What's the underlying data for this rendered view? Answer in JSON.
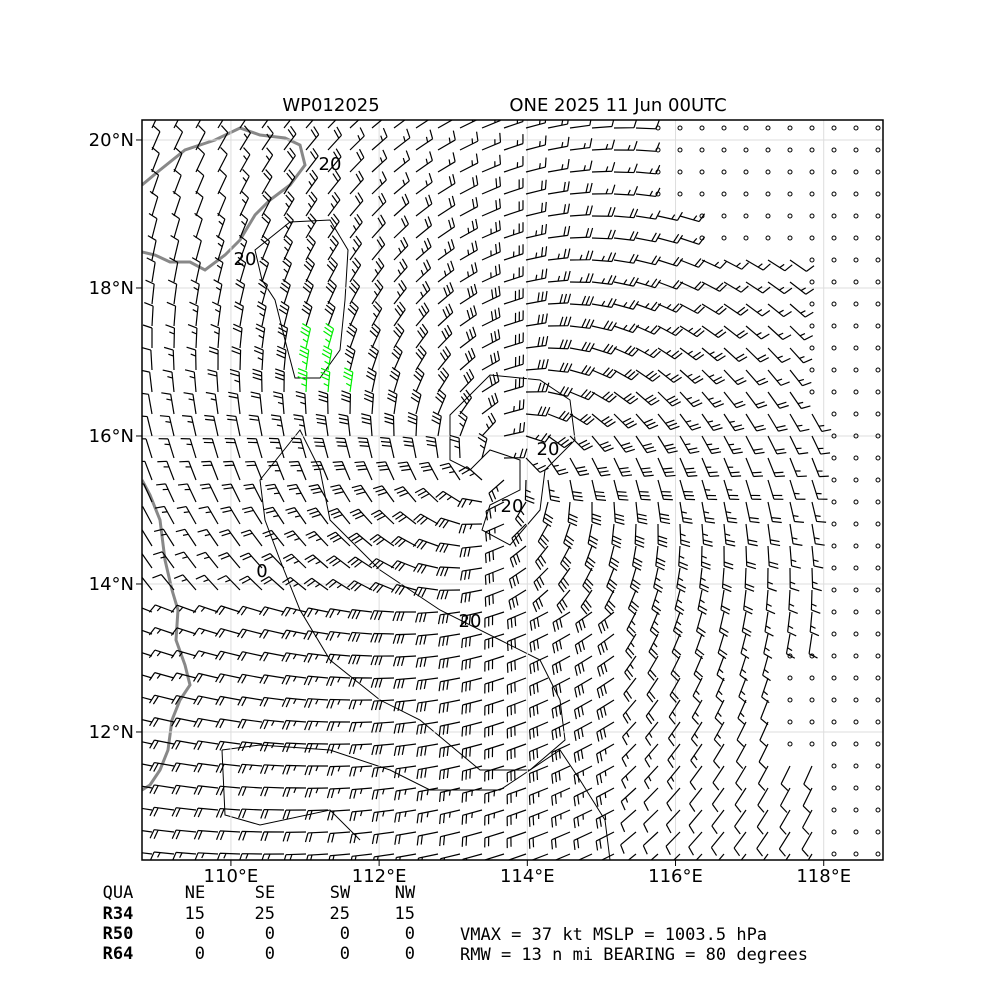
{
  "chart_data": {
    "type": "wind-map",
    "title_left": "WP012025",
    "title_right": "ONE 2025 11 Jun 00UTC",
    "xlim": [
      108.8,
      118.8
    ],
    "ylim": [
      10.27,
      20.27
    ],
    "xticks": [
      {
        "value": 110,
        "label": "110°E"
      },
      {
        "value": 112,
        "label": "112°E"
      },
      {
        "value": 114,
        "label": "114°E"
      },
      {
        "value": 116,
        "label": "116°E"
      },
      {
        "value": 118,
        "label": "118°E"
      }
    ],
    "yticks": [
      {
        "value": 12,
        "label": "12°N"
      },
      {
        "value": 14,
        "label": "14°N"
      },
      {
        "value": 16,
        "label": "16°N"
      },
      {
        "value": 18,
        "label": "18°N"
      },
      {
        "value": 20,
        "label": "20°N"
      }
    ],
    "grid": true,
    "contour_labels": [
      "20",
      "20",
      "20",
      "20",
      "0",
      "20"
    ]
  },
  "table": {
    "header": [
      "QUA",
      "NE",
      "SE",
      "SW",
      "NW"
    ],
    "rows": [
      [
        "R34",
        15,
        25,
        25,
        15
      ],
      [
        "R50",
        0,
        0,
        0,
        0
      ],
      [
        "R64",
        0,
        0,
        0,
        0
      ]
    ]
  },
  "info": [
    "VMAX =  37 kt MSLP = 1003.5 hPa",
    "RMW =  13 n mi BEARING =  80 degrees"
  ]
}
